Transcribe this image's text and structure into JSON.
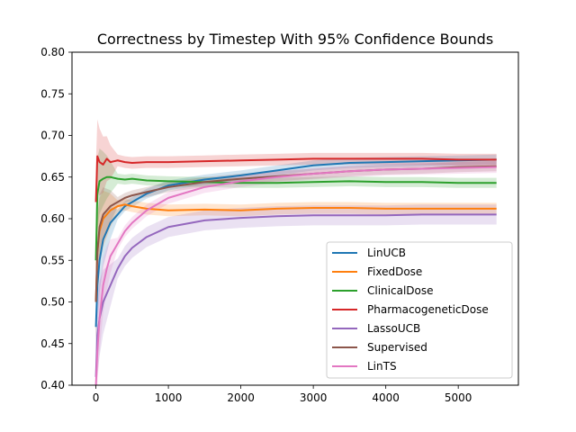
{
  "chart_data": {
    "type": "line",
    "title": "Correctness by Timestep With 95% Confidence Bounds",
    "xlabel": "",
    "ylabel": "",
    "xlim": [
      -330,
      5830
    ],
    "ylim": [
      0.4,
      0.8
    ],
    "xticks": [
      0,
      1000,
      2000,
      3000,
      4000,
      5000
    ],
    "xtick_labels": [
      "0",
      "1000",
      "2000",
      "3000",
      "4000",
      "5000"
    ],
    "yticks": [
      0.4,
      0.45,
      0.5,
      0.55,
      0.6,
      0.65,
      0.7,
      0.75,
      0.8
    ],
    "ytick_labels": [
      "0.40",
      "0.45",
      "0.50",
      "0.55",
      "0.60",
      "0.65",
      "0.70",
      "0.75",
      "0.80"
    ],
    "grid": false,
    "legend_position": "lower-right",
    "series": [
      {
        "name": "LinUCB",
        "color": "#1f77b4",
        "x": [
          0,
          20,
          50,
          100,
          150,
          200,
          300,
          400,
          500,
          700,
          1000,
          1500,
          2000,
          2500,
          3000,
          3500,
          4000,
          4500,
          5000,
          5528
        ],
        "values": [
          0.47,
          0.52,
          0.55,
          0.575,
          0.585,
          0.595,
          0.605,
          0.615,
          0.62,
          0.63,
          0.64,
          0.647,
          0.652,
          0.658,
          0.664,
          0.667,
          0.668,
          0.669,
          0.67,
          0.671
        ],
        "band": 0.006
      },
      {
        "name": "FixedDose",
        "color": "#ff7f0e",
        "x": [
          0,
          20,
          50,
          100,
          150,
          200,
          300,
          400,
          500,
          700,
          1000,
          1500,
          2000,
          2500,
          3000,
          3500,
          4000,
          4500,
          5000,
          5528
        ],
        "values": [
          0.5,
          0.56,
          0.585,
          0.6,
          0.605,
          0.61,
          0.615,
          0.617,
          0.615,
          0.612,
          0.61,
          0.611,
          0.61,
          0.612,
          0.613,
          0.613,
          0.612,
          0.612,
          0.612,
          0.612
        ],
        "band": 0.007
      },
      {
        "name": "ClinicalDose",
        "color": "#2ca02c",
        "x": [
          0,
          20,
          50,
          100,
          150,
          200,
          300,
          400,
          500,
          700,
          1000,
          1500,
          2000,
          2500,
          3000,
          3500,
          4000,
          4500,
          5000,
          5528
        ],
        "values": [
          0.55,
          0.63,
          0.645,
          0.648,
          0.65,
          0.65,
          0.648,
          0.647,
          0.648,
          0.646,
          0.645,
          0.644,
          0.643,
          0.643,
          0.644,
          0.645,
          0.644,
          0.644,
          0.643,
          0.643
        ],
        "band": 0.006
      },
      {
        "name": "PharmacogeneticDose",
        "color": "#d62728",
        "x": [
          0,
          20,
          50,
          100,
          150,
          200,
          300,
          400,
          500,
          700,
          1000,
          1500,
          2000,
          2500,
          3000,
          3500,
          4000,
          4500,
          5000,
          5528
        ],
        "values": [
          0.62,
          0.675,
          0.668,
          0.665,
          0.672,
          0.668,
          0.67,
          0.668,
          0.667,
          0.668,
          0.668,
          0.669,
          0.67,
          0.671,
          0.672,
          0.672,
          0.672,
          0.672,
          0.671,
          0.671
        ],
        "band": 0.007
      },
      {
        "name": "LassoUCB",
        "color": "#9467bd",
        "x": [
          0,
          20,
          50,
          100,
          150,
          200,
          300,
          400,
          500,
          700,
          1000,
          1500,
          2000,
          2500,
          3000,
          3500,
          4000,
          4500,
          5000,
          5528
        ],
        "values": [
          0.41,
          0.46,
          0.48,
          0.5,
          0.51,
          0.52,
          0.54,
          0.555,
          0.565,
          0.578,
          0.59,
          0.598,
          0.601,
          0.603,
          0.604,
          0.604,
          0.604,
          0.605,
          0.605,
          0.605
        ],
        "band": 0.012
      },
      {
        "name": "Supervised",
        "color": "#8c564b",
        "x": [
          0,
          20,
          50,
          100,
          150,
          200,
          300,
          400,
          500,
          700,
          1000,
          1500,
          2000,
          2500,
          3000,
          3500,
          4000,
          4500,
          5000,
          5528
        ],
        "values": [
          0.5,
          0.56,
          0.59,
          0.605,
          0.61,
          0.615,
          0.62,
          0.625,
          0.628,
          0.632,
          0.638,
          0.644,
          0.648,
          0.651,
          0.654,
          0.657,
          0.659,
          0.66,
          0.662,
          0.663
        ],
        "band": 0.006
      },
      {
        "name": "LinTS",
        "color": "#e377c2",
        "x": [
          0,
          20,
          50,
          100,
          150,
          200,
          300,
          400,
          500,
          700,
          1000,
          1500,
          2000,
          2500,
          3000,
          3500,
          4000,
          4500,
          5000,
          5528
        ],
        "values": [
          0.4,
          0.44,
          0.48,
          0.52,
          0.54,
          0.555,
          0.57,
          0.585,
          0.595,
          0.61,
          0.625,
          0.638,
          0.645,
          0.65,
          0.654,
          0.657,
          0.659,
          0.66,
          0.661,
          0.662
        ],
        "band": 0.007
      }
    ]
  }
}
